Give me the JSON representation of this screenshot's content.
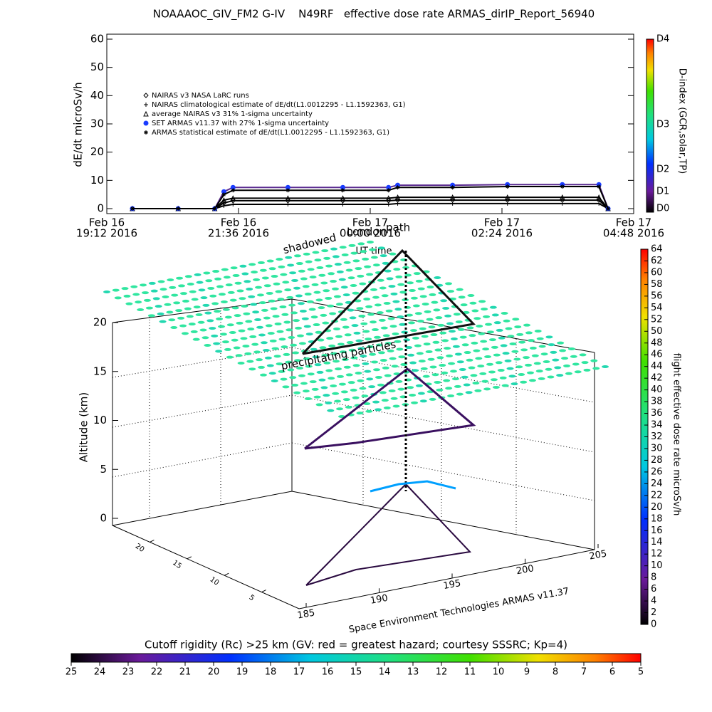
{
  "chart_data": {
    "type": "line",
    "title": "NOAAAOC_GIV_FM2 G-IV    N49RF   effective dose rate ARMAS_dirIP_Report_56940",
    "ylabel": "dE/dt microSv/h",
    "xlabel": "UT time",
    "xlim": [
      "2016-02-16T19:12",
      "2016-02-17T04:48"
    ],
    "xticks": [
      {
        "value": "2016-02-16T19:12",
        "label": [
          "Feb 16",
          "19:12 2016"
        ]
      },
      {
        "value": "2016-02-16T21:36",
        "label": [
          "Feb 16",
          "21:36 2016"
        ]
      },
      {
        "value": "2016-02-17T00:00",
        "label": [
          "Feb 17",
          "00:00 2016"
        ]
      },
      {
        "value": "2016-02-17T02:24",
        "label": [
          "Feb 17",
          "02:24 2016"
        ]
      },
      {
        "value": "2016-02-17T04:48",
        "label": [
          "Feb 17",
          "04:48 2016"
        ]
      }
    ],
    "ylim": [
      0,
      60
    ],
    "yticks": [
      0,
      10,
      20,
      30,
      40,
      50,
      60
    ],
    "x": [
      "2016-02-16T19:40",
      "2016-02-16T20:30",
      "2016-02-16T21:10",
      "2016-02-16T21:20",
      "2016-02-16T21:30",
      "2016-02-16T22:30",
      "2016-02-16T23:30",
      "2016-02-17T00:20",
      "2016-02-17T00:30",
      "2016-02-17T01:30",
      "2016-02-17T02:30",
      "2016-02-17T03:30",
      "2016-02-17T04:10",
      "2016-02-17T04:20"
    ],
    "series": [
      {
        "name": "NAIRAS v3 NASA LaRC runs",
        "marker": "diamond",
        "color": "#000000",
        "values": [
          0,
          0,
          0,
          2,
          2.8,
          2.8,
          2.8,
          2.8,
          3,
          3,
          3,
          3,
          3,
          0
        ]
      },
      {
        "name": "NAIRAS climatological estimate of dE/dt(L1.0012295 - L1.1592363, G1)",
        "marker": "plus",
        "color": "#000000",
        "values": [
          0,
          0,
          0,
          1,
          1.5,
          1.5,
          1.5,
          1.5,
          1.8,
          1.8,
          1.8,
          1.8,
          1.8,
          0
        ]
      },
      {
        "name": "average NAIRAS v3 31% 1-sigma uncertainty",
        "marker": "triangle",
        "color": "#000000",
        "values": [
          0,
          0,
          0,
          3,
          3.7,
          3.7,
          3.7,
          3.7,
          4,
          4,
          4,
          4,
          4,
          0
        ]
      },
      {
        "name": "SET ARMAS v11.37 with 27% 1-sigma uncertainty",
        "marker": "circle",
        "color": "#1a3cff",
        "values": [
          0,
          0,
          0,
          6,
          7.5,
          7.5,
          7.5,
          7.5,
          8.3,
          8.3,
          8.5,
          8.5,
          8.5,
          0
        ]
      },
      {
        "name": "ARMAS statistical estimate of dE/dt(L1.0012295 - L1.1592363, G1)",
        "marker": "asterisk",
        "color": "#000000",
        "values": [
          0,
          0,
          0,
          5,
          6.5,
          6.5,
          6.5,
          6.5,
          7.5,
          7.5,
          7.8,
          7.8,
          7.8,
          0
        ]
      }
    ],
    "dindex_label": "D-index (GCR,solar,TP)",
    "dindex_ticks": [
      "D0",
      "D1",
      "D2",
      "D3",
      "D4"
    ],
    "map": {
      "labels": [
        "shadowed",
        "London",
        "path"
      ],
      "annotation": "precipitating particles",
      "credit": "Space Environment Technologies ARMAS v11.37",
      "zlabel": "Altitude (km)",
      "zlim": [
        0,
        20
      ],
      "zticks": [
        0,
        5,
        10,
        15,
        20
      ],
      "lonlim": [
        185,
        205
      ],
      "lonticks": [
        185,
        190,
        195,
        200,
        205
      ],
      "latlim": [
        0,
        25
      ],
      "latticks": [
        5,
        10,
        15,
        20
      ]
    },
    "dose_colorbar": {
      "label": "flight effective dose rate microSv/h",
      "lim": [
        0,
        64
      ],
      "ticks": [
        0,
        2,
        4,
        6,
        8,
        10,
        12,
        14,
        16,
        18,
        20,
        22,
        24,
        26,
        28,
        30,
        32,
        34,
        36,
        38,
        40,
        42,
        44,
        46,
        48,
        50,
        52,
        54,
        56,
        58,
        60,
        62,
        64
      ]
    },
    "rigidity_colorbar": {
      "label": "Cutoff rigidity (Rc) >25 km (GV: red = greatest hazard; courtesy SSSRC; Kp=4)",
      "lim": [
        25,
        5
      ],
      "ticks": [
        25,
        24,
        23,
        22,
        21,
        20,
        19,
        18,
        17,
        16,
        15,
        14,
        13,
        12,
        11,
        10,
        9,
        8,
        7,
        6,
        5
      ]
    }
  }
}
